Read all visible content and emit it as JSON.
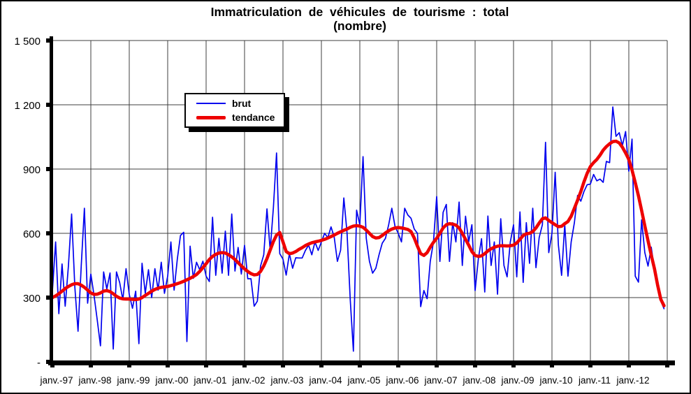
{
  "chart_data": {
    "type": "line",
    "title": "Immatriculation de véhicules de tourisme : total",
    "subtitle": "(nombre)",
    "grid": true,
    "legend_position": "inside-upper-left",
    "ylim": [
      0,
      1500
    ],
    "y_step": 300,
    "y_tick_labels": [
      "-",
      "300",
      "600",
      "900",
      "1 200",
      "1 500"
    ],
    "x_tick_labels": [
      "janv.-97",
      "janv.-98",
      "janv.-99",
      "janv.-00",
      "janv.-01",
      "janv.-02",
      "janv.-03",
      "janv.-04",
      "janv.-05",
      "janv.-06",
      "janv.-07",
      "janv.-08",
      "janv.-09",
      "janv.-10",
      "janv.-11",
      "janv.-12"
    ],
    "x_months_per_gridline": 12,
    "x_start": "janv.-97",
    "x_end": "déc.-12",
    "series": [
      {
        "name": "brut",
        "color": "#0000ee",
        "width": 1.7,
        "values": [
          330,
          560,
          225,
          457,
          260,
          447,
          690,
          350,
          143,
          450,
          717,
          274,
          410,
          310,
          195,
          75,
          420,
          340,
          415,
          60,
          420,
          370,
          290,
          435,
          315,
          250,
          330,
          85,
          460,
          320,
          430,
          300,
          435,
          335,
          465,
          320,
          400,
          560,
          335,
          480,
          590,
          605,
          95,
          540,
          390,
          465,
          430,
          470,
          400,
          375,
          675,
          404,
          577,
          414,
          610,
          404,
          690,
          424,
          534,
          410,
          544,
          388,
          388,
          260,
          283,
          447,
          500,
          714,
          521,
          720,
          975,
          505,
          480,
          405,
          505,
          437,
          486,
          485,
          485,
          520,
          545,
          500,
          560,
          520,
          560,
          600,
          580,
          630,
          583,
          469,
          521,
          765,
          603,
          290,
          50,
          708,
          640,
          958,
          577,
          469,
          414,
          437,
          500,
          554,
          577,
          640,
          717,
          632,
          600,
          560,
          717,
          685,
          670,
          620,
          600,
          258,
          333,
          295,
          469,
          560,
          772,
          469,
          698,
          735,
          469,
          650,
          560,
          746,
          450,
          680,
          560,
          640,
          333,
          480,
          575,
          326,
          681,
          450,
          560,
          316,
          668,
          450,
          397,
          560,
          640,
          397,
          700,
          371,
          650,
          460,
          717,
          440,
          580,
          640,
          1025,
          510,
          600,
          885,
          545,
          404,
          640,
          400,
          560,
          650,
          777,
          750,
          795,
          827,
          830,
          875,
          845,
          853,
          838,
          936,
          930,
          1190,
          1053,
          1070,
          1010,
          1075,
          890,
          1040,
          400,
          372,
          663,
          510,
          447,
          535,
          430,
          342,
          284,
          248
        ]
      },
      {
        "name": "tendance",
        "color": "#ee0000",
        "width": 4.6,
        "values": [
          300,
          308,
          318,
          330,
          342,
          352,
          360,
          365,
          365,
          358,
          348,
          335,
          322,
          315,
          316,
          322,
          330,
          333,
          328,
          318,
          306,
          298,
          294,
          293,
          293,
          292,
          291,
          293,
          300,
          310,
          320,
          330,
          338,
          344,
          348,
          350,
          352,
          356,
          360,
          365,
          370,
          376,
          383,
          390,
          398,
          408,
          422,
          440,
          458,
          478,
          492,
          502,
          508,
          510,
          508,
          500,
          490,
          478,
          463,
          448,
          434,
          422,
          412,
          406,
          408,
          422,
          448,
          482,
          522,
          562,
          592,
          604,
          560,
          515,
          505,
          508,
          515,
          525,
          533,
          543,
          550,
          556,
          560,
          563,
          567,
          572,
          578,
          585,
          592,
          600,
          607,
          614,
          620,
          628,
          634,
          636,
          634,
          628,
          615,
          600,
          585,
          578,
          580,
          590,
          602,
          612,
          620,
          625,
          627,
          625,
          622,
          618,
          608,
          578,
          540,
          505,
          497,
          510,
          535,
          558,
          577,
          600,
          625,
          640,
          645,
          643,
          638,
          625,
          600,
          572,
          545,
          515,
          497,
          492,
          495,
          505,
          518,
          528,
          535,
          540,
          542,
          542,
          541,
          542,
          545,
          555,
          572,
          590,
          598,
          600,
          608,
          625,
          648,
          668,
          672,
          660,
          650,
          640,
          631,
          633,
          645,
          655,
          680,
          717,
          755,
          795,
          840,
          880,
          912,
          930,
          945,
          965,
          988,
          1005,
          1018,
          1028,
          1030,
          1022,
          1002,
          975,
          945,
          895,
          837,
          775,
          707,
          635,
          565,
          498,
          435,
          357,
          292,
          262
        ]
      }
    ],
    "colors": {
      "brut": "#0000ee",
      "tendance": "#ee0000",
      "gridline": "#3f3f3f",
      "axis": "#000000"
    }
  }
}
